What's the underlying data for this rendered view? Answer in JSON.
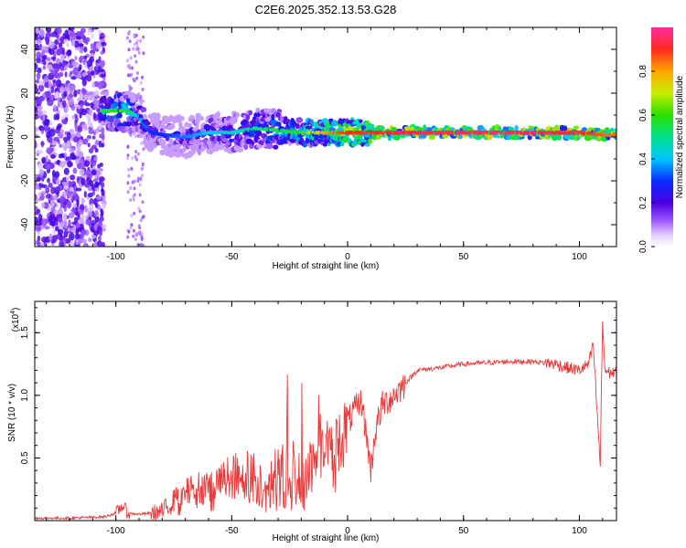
{
  "chart_data": [
    {
      "type": "heatmap",
      "title": "C2E6.2025.352.13.53.G28",
      "xlabel": "Height of straight line (km)",
      "ylabel": "Frequency (Hz)",
      "xlim": [
        -135,
        116
      ],
      "ylim": [
        -50,
        50
      ],
      "xticks": [
        -100,
        -50,
        0,
        50,
        100
      ],
      "xtick_labels": [
        "-100",
        "-50",
        "0",
        "50",
        "100"
      ],
      "yticks": [
        -40,
        -20,
        0,
        20,
        40
      ],
      "ytick_labels": [
        "-40",
        "-20",
        "0",
        "20",
        "40"
      ],
      "colorbar": {
        "label": "Normalized spectral amplitude",
        "range": [
          0.0,
          1.0
        ],
        "ticks": [
          0.0,
          0.2,
          0.4,
          0.6,
          0.8
        ],
        "tick_labels": [
          "0.0",
          "0.2",
          "0.4",
          "0.6",
          "0.8"
        ]
      },
      "ridge": {
        "x": [
          -105,
          -100,
          -95,
          -90,
          -85,
          -80,
          -70,
          -60,
          -50,
          -40,
          -30,
          -20,
          -10,
          0,
          10,
          25,
          50,
          75,
          100,
          110,
          116
        ],
        "y": [
          12,
          12,
          12,
          9,
          2,
          1,
          0,
          2,
          2,
          4,
          3,
          2,
          2,
          2,
          2,
          2,
          2,
          2,
          2,
          1,
          1
        ],
        "amplitude": [
          0.55,
          0.6,
          0.55,
          0.4,
          0.3,
          0.3,
          0.35,
          0.4,
          0.45,
          0.5,
          0.55,
          0.6,
          0.8,
          0.9,
          0.9,
          0.92,
          0.95,
          0.95,
          0.92,
          0.85,
          0.85
        ]
      }
    },
    {
      "type": "line",
      "ylabel": "SNR (10 * v/v)",
      "multiplier_label": "(x10",
      "multiplier_exp": "4",
      "xlabel": "Height of straight line (km)",
      "xlim": [
        -135,
        116
      ],
      "ylim": [
        0.0,
        1.75
      ],
      "xticks": [
        -100,
        -50,
        0,
        50,
        100
      ],
      "xtick_labels": [
        "-100",
        "-50",
        "0",
        "50",
        "100"
      ],
      "yticks": [
        0.5,
        1.0,
        1.5
      ],
      "ytick_labels": [
        "0.5",
        "1.0",
        "1.5"
      ],
      "series": [
        {
          "name": "SNR",
          "color": "#e83a3a",
          "x": [
            -135,
            -120,
            -105,
            -100,
            -97,
            -95,
            -90,
            -85,
            -80,
            -75,
            -70,
            -65,
            -60,
            -55,
            -50,
            -45,
            -40,
            -35,
            -30,
            -25,
            -20,
            -15,
            -12,
            -10,
            -8,
            -5,
            -2,
            0,
            3,
            6,
            8,
            10,
            12,
            15,
            20,
            25,
            30,
            40,
            50,
            60,
            70,
            80,
            90,
            95,
            100,
            104,
            106,
            108,
            109,
            110,
            111,
            113,
            116
          ],
          "y": [
            0.02,
            0.02,
            0.03,
            0.06,
            0.12,
            0.06,
            0.05,
            0.06,
            0.07,
            0.16,
            0.22,
            0.26,
            0.28,
            0.31,
            0.34,
            0.38,
            0.34,
            0.3,
            0.35,
            0.38,
            0.4,
            0.42,
            0.6,
            0.55,
            0.65,
            0.6,
            0.68,
            0.78,
            0.88,
            0.95,
            0.7,
            0.4,
            0.72,
            0.92,
            1.0,
            1.1,
            1.2,
            1.22,
            1.25,
            1.26,
            1.27,
            1.27,
            1.25,
            1.22,
            1.2,
            1.25,
            1.4,
            0.75,
            0.45,
            1.6,
            1.2,
            1.18,
            1.18
          ]
        }
      ]
    }
  ]
}
